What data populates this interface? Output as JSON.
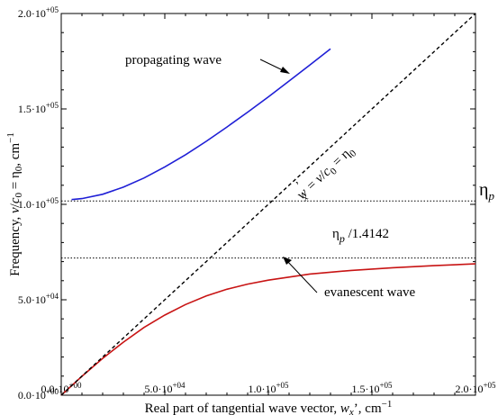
{
  "chart_data": {
    "type": "line",
    "xlabel": "Real part of tangential wave vector, w_x', cm⁻¹",
    "ylabel": "Frequency, ν/c₀ = η₀, cm⁻¹",
    "xlim": [
      0,
      200000
    ],
    "ylim": [
      0,
      200000
    ],
    "x_ticks": [
      0,
      50000,
      100000,
      150000,
      200000
    ],
    "y_ticks": [
      0,
      50000,
      100000,
      150000,
      200000
    ],
    "x_tick_labels": [
      "0.0·10+00",
      "5.0·10+04",
      "1.0·10+05",
      "1.5·10+05",
      "2.0·10+05"
    ],
    "y_tick_labels": [
      "0.0·10+00",
      "5.0·10+04",
      "1.0·10+05",
      "1.5·10+05",
      "2.0·10+05"
    ],
    "grid": false,
    "series": [
      {
        "name": "propagating wave",
        "color": "#1f1fd6",
        "x": [
          5000,
          10000,
          20000,
          30000,
          40000,
          50000,
          60000,
          70000,
          80000,
          90000,
          100000,
          110000,
          120000,
          130000
        ],
        "y": [
          102500,
          103000,
          105300,
          109000,
          113800,
          119600,
          126000,
          133000,
          140500,
          148300,
          156300,
          164600,
          173000,
          181500
        ]
      },
      {
        "name": "evanescent wave",
        "color": "#c81414",
        "x": [
          0,
          10000,
          20000,
          30000,
          40000,
          50000,
          60000,
          70000,
          80000,
          90000,
          100000,
          120000,
          140000,
          160000,
          180000,
          200000
        ],
        "y": [
          0,
          9900,
          19300,
          27800,
          35500,
          42000,
          47500,
          52000,
          55500,
          58200,
          60300,
          63500,
          65400,
          66800,
          67900,
          68800
        ]
      },
      {
        "name": "light line",
        "color": "#000000",
        "dash": "dashed",
        "x": [
          0,
          200000
        ],
        "y": [
          0,
          200000
        ]
      },
      {
        "name": "eta_p",
        "color": "#000000",
        "dash": "dotted",
        "x": [
          0,
          200000
        ],
        "y": [
          101800,
          101800
        ]
      },
      {
        "name": "eta_p/1.4142",
        "color": "#000000",
        "dash": "dotted",
        "x": [
          0,
          200000
        ],
        "y": [
          71900,
          71900
        ]
      }
    ],
    "annotations": {
      "propagating": "propagating wave",
      "evanescent": "evanescent wave",
      "light_line": "w'x = ν/c₀ = η₀",
      "eta_p": "ηp",
      "eta_p_over": "ηp /1.4142"
    }
  }
}
